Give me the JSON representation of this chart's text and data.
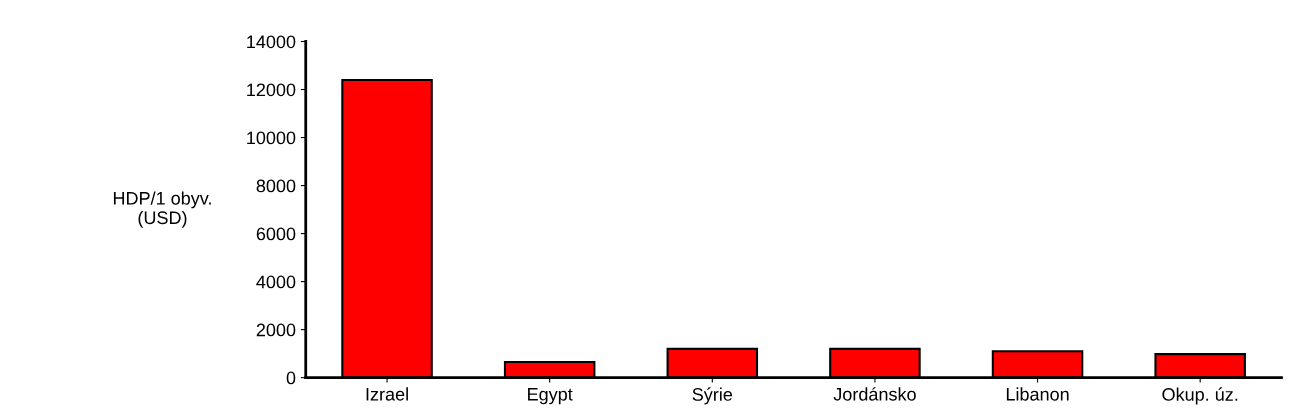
{
  "chart_data": {
    "type": "bar",
    "ylabel": "HDP/1 obyv.\n(USD)",
    "categories": [
      "Izrael",
      "Egypt",
      "Sýrie",
      "Jordánsko",
      "Libanon",
      "Okup. úz."
    ],
    "values": [
      12400,
      650,
      1200,
      1200,
      1100,
      980
    ],
    "color": "#ff0000",
    "ylim": [
      0,
      14000
    ],
    "yticks": [
      0,
      2000,
      4000,
      6000,
      8000,
      10000,
      12000,
      14000
    ],
    "grid": false
  }
}
